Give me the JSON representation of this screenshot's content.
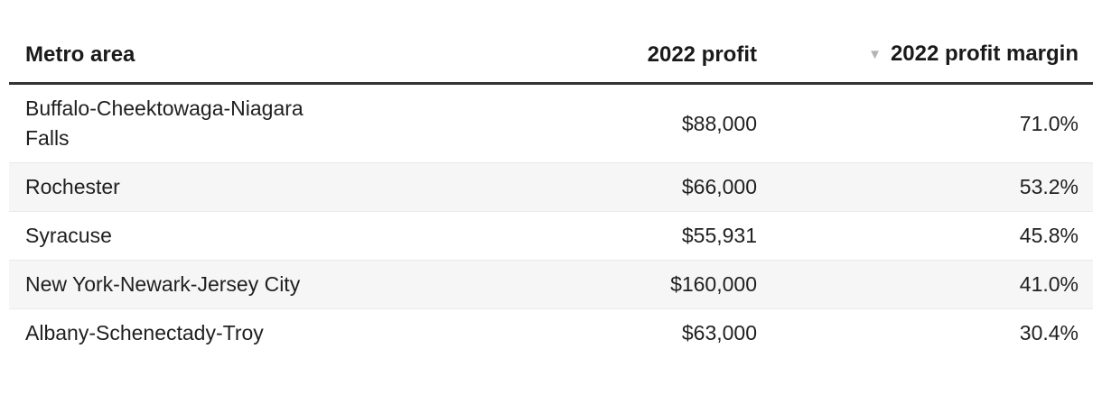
{
  "chart_data": {
    "type": "table",
    "title": "",
    "columns": [
      "Metro area",
      "2022 profit",
      "2022 profit margin"
    ],
    "rows": [
      [
        "Buffalo-Cheektowaga-Niagara Falls",
        "$88,000",
        "71.0%"
      ],
      [
        "Rochester",
        "$66,000",
        "53.2%"
      ],
      [
        "Syracuse",
        "$55,931",
        "45.8%"
      ],
      [
        "New York-Newark-Jersey City",
        "$160,000",
        "41.0%"
      ],
      [
        "Albany-Schenectady-Troy",
        "$63,000",
        "30.4%"
      ]
    ],
    "sorted_by": "2022 profit margin",
    "sort_direction": "descending",
    "layout_hints": {
      "striped_rows": true,
      "header_rule": "thick-dark",
      "numeric_columns_right_aligned": true
    }
  },
  "table": {
    "headers": {
      "metro": "Metro area",
      "profit": "2022 profit",
      "margin": "2022 profit margin"
    },
    "sort_icon": "▼",
    "rows": [
      {
        "metro": "Buffalo-Cheektowaga-Niagara Falls",
        "profit": "$88,000",
        "margin": "71.0%"
      },
      {
        "metro": "Rochester",
        "profit": "$66,000",
        "margin": "53.2%"
      },
      {
        "metro": "Syracuse",
        "profit": "$55,931",
        "margin": "45.8%"
      },
      {
        "metro": "New York-Newark-Jersey City",
        "profit": "$160,000",
        "margin": "41.0%"
      },
      {
        "metro": "Albany-Schenectady-Troy",
        "profit": "$63,000",
        "margin": "30.4%"
      }
    ],
    "colors": {
      "header_text": "#1a1a1a",
      "body_text": "#1f1f1f",
      "stripe_bg": "#f6f6f6",
      "row_border": "#eaeaea",
      "header_rule": "#333333",
      "sort_icon": "#b4b4b4"
    }
  }
}
